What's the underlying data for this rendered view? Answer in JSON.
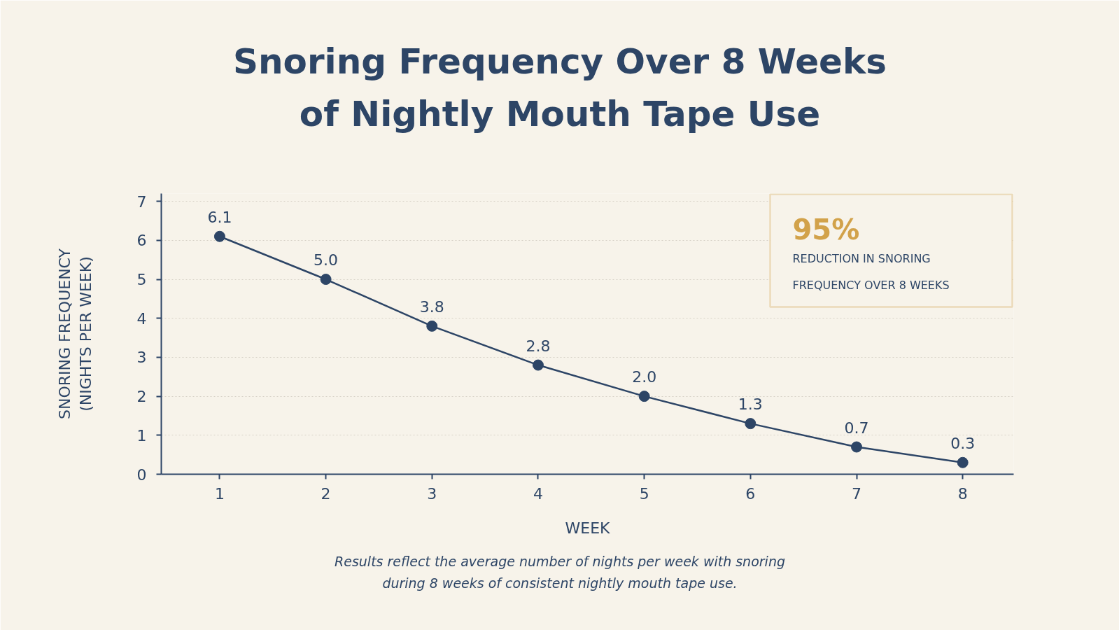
{
  "chart_data": {
    "type": "line",
    "title": "Snoring Frequency Over 8 Weeks\nof Nightly Mouth Tape Use",
    "xlabel": "WEEK",
    "ylabel": "SNORING FREQUENCY\n(NIGHTS PER WEEK)",
    "x": [
      1,
      2,
      3,
      4,
      5,
      6,
      7,
      8
    ],
    "series": [
      {
        "color": "#2d4566",
        "values": [
          6.1,
          5.0,
          3.8,
          2.8,
          2.0,
          1.3,
          0.7,
          0.3
        ],
        "value_labels": [
          "6.1",
          "5.0",
          "3.8",
          "2.8",
          "2.0",
          "1.3",
          "0.7",
          "0.3"
        ]
      }
    ],
    "xlim": [
      0.45,
      8.48
    ],
    "xticks": [
      1,
      2,
      3,
      4,
      5,
      6,
      7,
      8
    ],
    "ylim": [
      0,
      7.2
    ],
    "yticks": [
      0,
      1,
      2,
      3,
      4,
      5,
      6,
      7
    ],
    "grid": "y",
    "marker": "circle",
    "line_style": "solid",
    "annotations": [
      "95%",
      "REDUCTION IN SNORING\nFREQUENCY OVER 8 WEEKS",
      "Results reflect the average number of nights per week with snoring\nduring 8 weeks of consistent nightly mouth tape use."
    ]
  }
}
